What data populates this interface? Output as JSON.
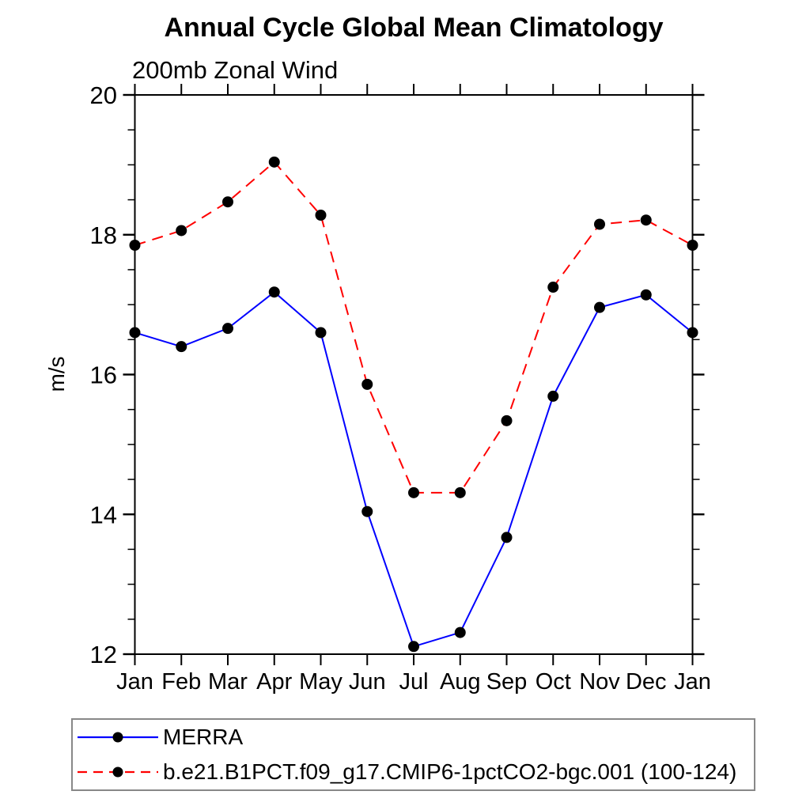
{
  "header": {
    "title": "Annual Cycle Global Mean Climatology",
    "subtitle": "200mb Zonal Wind"
  },
  "chart_data": {
    "type": "line",
    "title": "Annual Cycle Global Mean Climatology",
    "subtitle": "200mb Zonal Wind",
    "xlabel": "",
    "ylabel": "m/s",
    "categories": [
      "Jan",
      "Feb",
      "Mar",
      "Apr",
      "May",
      "Jun",
      "Jul",
      "Aug",
      "Sep",
      "Oct",
      "Nov",
      "Dec",
      "Jan"
    ],
    "ylim": [
      12,
      20
    ],
    "ytick_major": [
      12,
      14,
      16,
      18,
      20
    ],
    "ytick_minor_step": 0.5,
    "grid": false,
    "legend_position": "bottom-left-box",
    "series": [
      {
        "name": "MERRA",
        "color": "#0000ff",
        "style": "solid",
        "marker": "black-dot",
        "values": [
          16.6,
          16.4,
          16.66,
          17.18,
          16.6,
          14.04,
          12.11,
          12.31,
          13.67,
          15.69,
          16.96,
          17.14,
          16.6
        ]
      },
      {
        "name": "b.e21.B1PCT.f09_g17.CMIP6-1pctCO2-bgc.001 (100-124)",
        "color": "#ff0000",
        "style": "dashed",
        "marker": "black-dot",
        "values": [
          17.85,
          18.06,
          18.47,
          19.04,
          18.28,
          15.86,
          14.31,
          14.31,
          15.34,
          17.25,
          18.15,
          18.21,
          17.85
        ]
      }
    ]
  },
  "legend": {
    "items": [
      {
        "label": "MERRA"
      },
      {
        "label": "b.e21.B1PCT.f09_g17.CMIP6-1pctCO2-bgc.001 (100-124)"
      }
    ]
  },
  "colors": {
    "merra_line": "#0000ff",
    "model_line": "#ff0000",
    "marker": "#000000",
    "axis": "#000000",
    "legend_border": "#888888"
  }
}
